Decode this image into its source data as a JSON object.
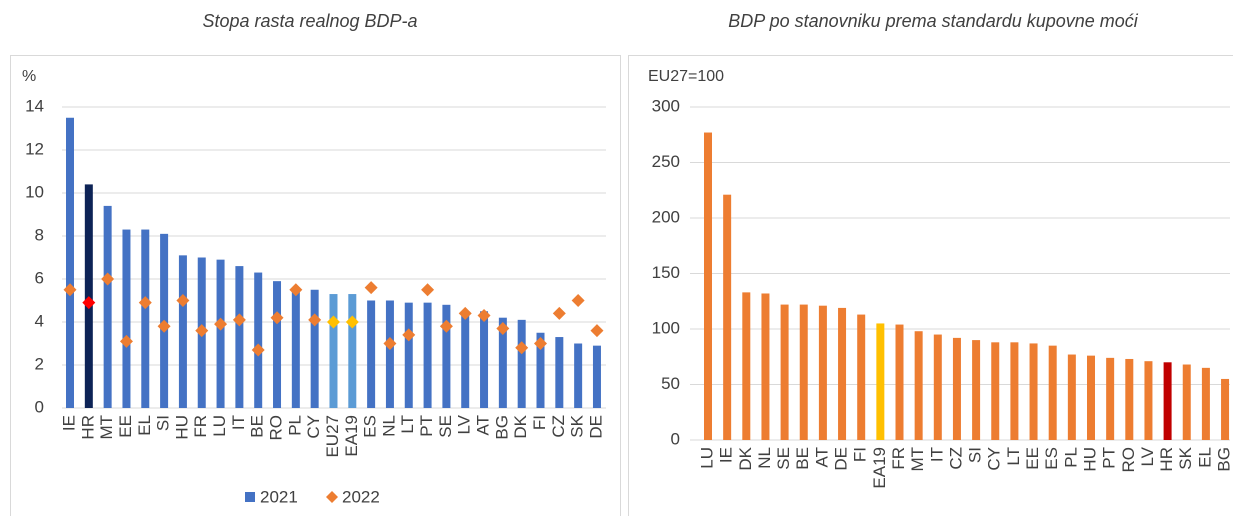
{
  "chart_data": [
    {
      "type": "combo",
      "title": "Stopa rasta realnog BDP-a",
      "ylabel": "%",
      "categories": [
        "IE",
        "HR",
        "MT",
        "EE",
        "EL",
        "SI",
        "HU",
        "FR",
        "LU",
        "IT",
        "BE",
        "RO",
        "PL",
        "CY",
        "EU27",
        "EA19",
        "ES",
        "NL",
        "LT",
        "PT",
        "SE",
        "LV",
        "AT",
        "BG",
        "DK",
        "FI",
        "CZ",
        "SK",
        "DE"
      ],
      "series": [
        {
          "name": "2021",
          "mark": "bar",
          "color": "#4472c4",
          "colors": [
            "#4472c4",
            "#0d2356",
            "#4472c4",
            "#4472c4",
            "#4472c4",
            "#4472c4",
            "#4472c4",
            "#4472c4",
            "#4472c4",
            "#4472c4",
            "#4472c4",
            "#4472c4",
            "#4472c4",
            "#4472c4",
            "#5b9bd5",
            "#5b9bd5",
            "#4472c4",
            "#4472c4",
            "#4472c4",
            "#4472c4",
            "#4472c4",
            "#4472c4",
            "#4472c4",
            "#4472c4",
            "#4472c4",
            "#4472c4",
            "#4472c4",
            "#4472c4",
            "#4472c4"
          ],
          "values": [
            13.5,
            10.4,
            9.4,
            8.3,
            8.3,
            8.1,
            7.1,
            7.0,
            6.9,
            6.6,
            6.3,
            5.9,
            5.5,
            5.5,
            5.3,
            5.3,
            5.0,
            5.0,
            4.9,
            4.9,
            4.8,
            4.5,
            4.5,
            4.2,
            4.1,
            3.5,
            3.3,
            3.0,
            2.9
          ]
        },
        {
          "name": "2022",
          "mark": "diamond",
          "color": "#ed7d31",
          "colors": [
            "#ed7d31",
            "#ff0000",
            "#ed7d31",
            "#ed7d31",
            "#ed7d31",
            "#ed7d31",
            "#ed7d31",
            "#ed7d31",
            "#ed7d31",
            "#ed7d31",
            "#ed7d31",
            "#ed7d31",
            "#ed7d31",
            "#ed7d31",
            "#ffc000",
            "#ffc000",
            "#ed7d31",
            "#ed7d31",
            "#ed7d31",
            "#ed7d31",
            "#ed7d31",
            "#ed7d31",
            "#ed7d31",
            "#ed7d31",
            "#ed7d31",
            "#ed7d31",
            "#ed7d31",
            "#ed7d31",
            "#ed7d31"
          ],
          "values": [
            5.5,
            4.9,
            6.0,
            3.1,
            4.9,
            3.8,
            5.0,
            3.6,
            3.9,
            4.1,
            2.7,
            4.2,
            5.5,
            4.1,
            4.0,
            4.0,
            5.6,
            3.0,
            3.4,
            5.5,
            3.8,
            4.4,
            4.3,
            3.7,
            2.8,
            3.0,
            4.4,
            5.0,
            3.6
          ]
        }
      ],
      "ylim": [
        0,
        14
      ],
      "yticks": [
        0,
        2,
        4,
        6,
        8,
        10,
        12,
        14
      ],
      "grid": true,
      "legend": "bottom"
    },
    {
      "type": "bar",
      "title": "BDP po stanovniku prema standardu kupovne moći",
      "ylabel": "EU27=100",
      "categories": [
        "LU",
        "IE",
        "DK",
        "NL",
        "SE",
        "BE",
        "AT",
        "DE",
        "FI",
        "EA19",
        "FR",
        "MT",
        "IT",
        "CZ",
        "SI",
        "CY",
        "LT",
        "EE",
        "ES",
        "PL",
        "HU",
        "PT",
        "RO",
        "LV",
        "HR",
        "SK",
        "EL",
        "BG"
      ],
      "values": [
        277,
        221,
        133,
        132,
        122,
        122,
        121,
        119,
        113,
        105,
        104,
        98,
        95,
        92,
        90,
        88,
        88,
        87,
        85,
        77,
        76,
        74,
        73,
        71,
        70,
        68,
        65,
        55
      ],
      "color": "#ed7d31",
      "colors": [
        "#ed7d31",
        "#ed7d31",
        "#ed7d31",
        "#ed7d31",
        "#ed7d31",
        "#ed7d31",
        "#ed7d31",
        "#ed7d31",
        "#ed7d31",
        "#ffc000",
        "#ed7d31",
        "#ed7d31",
        "#ed7d31",
        "#ed7d31",
        "#ed7d31",
        "#ed7d31",
        "#ed7d31",
        "#ed7d31",
        "#ed7d31",
        "#ed7d31",
        "#ed7d31",
        "#ed7d31",
        "#ed7d31",
        "#ed7d31",
        "#c00000",
        "#ed7d31",
        "#ed7d31",
        "#ed7d31"
      ],
      "ylim": [
        0,
        300
      ],
      "yticks": [
        0,
        50,
        100,
        150,
        200,
        250,
        300
      ],
      "grid": true
    }
  ]
}
